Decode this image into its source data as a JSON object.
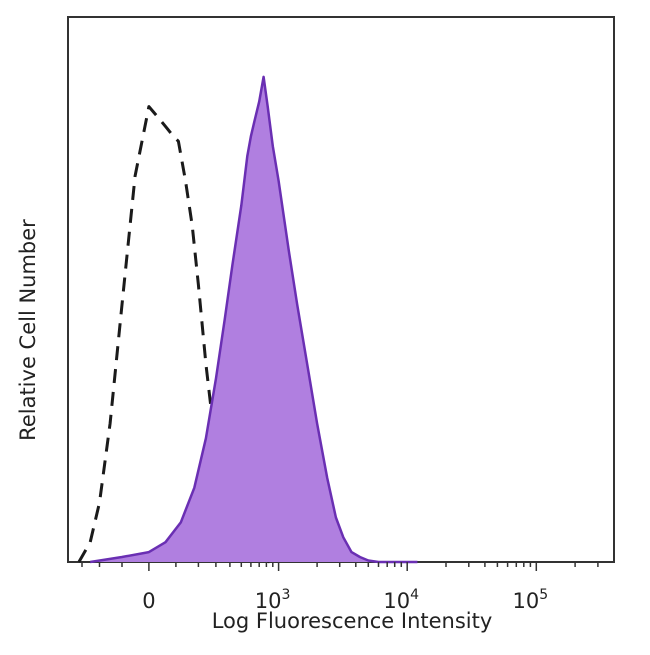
{
  "chart_data": {
    "type": "area",
    "title": "",
    "xlabel": "Log Fluorescence Intensity",
    "ylabel": "Relative Cell Number",
    "x_scale": "biexponential (log)",
    "xlim": [
      -400,
      400000
    ],
    "ylim": [
      0,
      1.0
    ],
    "grid": false,
    "legend": "none",
    "x_ticks": [
      {
        "value": 0,
        "base": "0",
        "exp": ""
      },
      {
        "value": 1000,
        "base": "10",
        "exp": "3"
      },
      {
        "value": 10000,
        "base": "10",
        "exp": "4"
      },
      {
        "value": 100000,
        "base": "10",
        "exp": "5"
      }
    ],
    "series": [
      {
        "style": "dashed",
        "fill": "none",
        "color": "#1a1a1a",
        "x": [
          -320,
          -250,
          -200,
          -150,
          -100,
          -50,
          0,
          30,
          60,
          90,
          110,
          140,
          170,
          200,
          240,
          280,
          320,
          380,
          450,
          530,
          600,
          680,
          760,
          850
        ],
        "y": [
          0.0,
          0.04,
          0.12,
          0.28,
          0.52,
          0.78,
          0.92,
          0.9,
          0.88,
          0.86,
          0.85,
          0.77,
          0.68,
          0.56,
          0.4,
          0.28,
          0.2,
          0.14,
          0.09,
          0.05,
          0.03,
          0.01,
          0.005,
          0.0
        ]
      },
      {
        "style": "solid",
        "fill": "#b07fe0",
        "color": "#6a2fb3",
        "x": [
          -250,
          -100,
          0,
          60,
          120,
          180,
          240,
          300,
          360,
          420,
          500,
          560,
          600,
          640,
          700,
          760,
          820,
          900,
          1000,
          1200,
          1400,
          1700,
          2000,
          2400,
          2800,
          3200,
          3700,
          4300,
          5000,
          6000,
          8000,
          12000
        ],
        "y": [
          0.0,
          0.01,
          0.02,
          0.04,
          0.08,
          0.15,
          0.25,
          0.37,
          0.49,
          0.6,
          0.72,
          0.82,
          0.86,
          0.89,
          0.93,
          0.98,
          0.92,
          0.84,
          0.77,
          0.63,
          0.52,
          0.39,
          0.28,
          0.17,
          0.09,
          0.05,
          0.02,
          0.01,
          0.003,
          0.0,
          0.0,
          0.0
        ]
      }
    ]
  }
}
